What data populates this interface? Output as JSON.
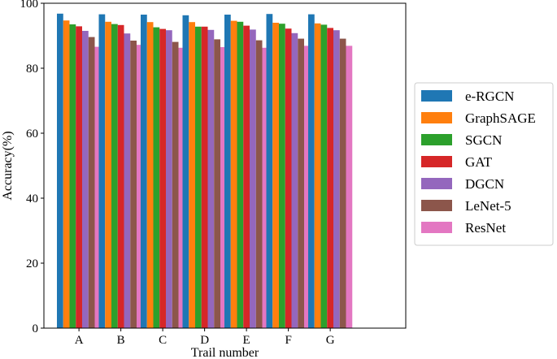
{
  "chart_data": {
    "type": "bar",
    "title": "",
    "xlabel": "Trail number",
    "ylabel": "Accuracy(%)",
    "ylim": [
      0,
      100
    ],
    "yticks": [
      0,
      20,
      40,
      60,
      80,
      100
    ],
    "grid": false,
    "legend_position": "right",
    "categories": [
      "A",
      "B",
      "C",
      "D",
      "E",
      "F",
      "G"
    ],
    "series": [
      {
        "name": "e-RGCN",
        "color": "#1f77b4",
        "values": [
          96.8,
          96.6,
          96.5,
          96.3,
          96.5,
          96.7,
          96.6
        ]
      },
      {
        "name": "GraphSAGE",
        "color": "#ff7f0e",
        "values": [
          94.7,
          94.3,
          94.2,
          94.2,
          94.6,
          94.0,
          93.8
        ]
      },
      {
        "name": "SGCN",
        "color": "#2ca02c",
        "values": [
          93.5,
          93.6,
          92.6,
          92.8,
          94.3,
          93.7,
          93.4
        ]
      },
      {
        "name": "GAT",
        "color": "#d62728",
        "values": [
          92.9,
          93.3,
          92.1,
          92.8,
          93.1,
          92.2,
          92.4
        ]
      },
      {
        "name": "DGCN",
        "color": "#9467bd",
        "values": [
          91.5,
          90.7,
          91.7,
          91.8,
          91.9,
          90.8,
          91.7
        ]
      },
      {
        "name": "LeNet-5",
        "color": "#8c564b",
        "values": [
          89.6,
          88.5,
          88.1,
          88.9,
          88.6,
          89.1,
          89.1
        ]
      },
      {
        "name": "ResNet",
        "color": "#e377c2",
        "values": [
          86.6,
          87.2,
          86.3,
          86.5,
          86.3,
          86.9,
          86.9
        ]
      }
    ]
  }
}
